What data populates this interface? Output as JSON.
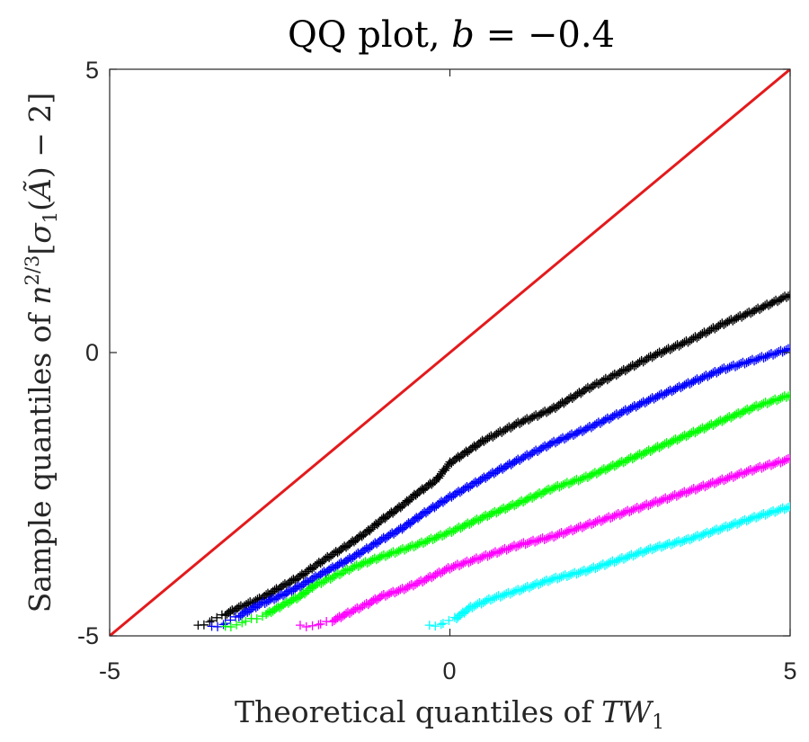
{
  "chart_data": {
    "type": "scatter",
    "title": "QQ plot, b = −0.4",
    "title_parts": {
      "prefix": "QQ plot, ",
      "var": "b",
      "suffix": " = −0.4"
    },
    "xlabel": "Theoretical quantiles of TW₁",
    "xlabel_parts": {
      "prefix": "Theoretical quantiles of ",
      "var": "TW",
      "sub": "1"
    },
    "ylabel": "Sample quantiles of n^{2/3}[σ₁(Ã) − 2]",
    "ylabel_parts": {
      "prefix": "Sample quantiles of ",
      "n": "n",
      "exp": "2/3",
      "open": "[",
      "sigma": "σ",
      "sub": "1",
      "paren_open": "(",
      "A": "Ã",
      "paren_close": ")",
      "tail": " − 2]"
    },
    "xlim": [
      -5,
      5
    ],
    "ylim": [
      -5,
      5
    ],
    "xticks": [
      -5,
      0,
      5
    ],
    "yticks": [
      -5,
      0,
      5
    ],
    "xtick_labels": [
      "-5",
      "0",
      "5"
    ],
    "ytick_labels": [
      "-5",
      "0",
      "5"
    ],
    "reference_line": {
      "x": [
        -5,
        5
      ],
      "y": [
        -5,
        5
      ],
      "color": "#e41a1c"
    },
    "marker": "+",
    "series": [
      {
        "name": "black",
        "color": "#000000",
        "x": [
          -3.7,
          -3.5,
          -3.3,
          -3.1,
          -2.8,
          -2.5,
          -2.2,
          -2.0,
          -1.8,
          -1.5,
          -1.2,
          -1.0,
          -0.7,
          -0.5,
          -0.2,
          0.0,
          0.5,
          1.0,
          1.5,
          2.0,
          2.5,
          3.0,
          3.5,
          4.0,
          4.5,
          5.0
        ],
        "y": [
          -4.83,
          -4.73,
          -4.62,
          -4.5,
          -4.35,
          -4.15,
          -3.95,
          -3.78,
          -3.62,
          -3.4,
          -3.15,
          -2.95,
          -2.7,
          -2.5,
          -2.25,
          -1.95,
          -1.55,
          -1.25,
          -1.0,
          -0.65,
          -0.35,
          -0.05,
          0.2,
          0.5,
          0.75,
          1.02
        ]
      },
      {
        "name": "blue",
        "color": "#0000ff",
        "x": [
          -3.5,
          -3.3,
          -3.1,
          -2.8,
          -2.5,
          -2.2,
          -2.0,
          -1.8,
          -1.5,
          -1.2,
          -1.0,
          -0.7,
          -0.4,
          -0.2,
          0.0,
          0.3,
          0.6,
          1.0,
          1.5,
          2.0,
          2.5,
          3.0,
          3.5,
          4.0,
          4.5,
          5.0
        ],
        "y": [
          -4.85,
          -4.78,
          -4.65,
          -4.45,
          -4.3,
          -4.12,
          -3.98,
          -3.85,
          -3.66,
          -3.45,
          -3.3,
          -3.1,
          -2.85,
          -2.7,
          -2.55,
          -2.35,
          -2.15,
          -1.9,
          -1.6,
          -1.35,
          -1.07,
          -0.8,
          -0.55,
          -0.3,
          -0.12,
          0.07
        ]
      },
      {
        "name": "green",
        "color": "#00ff00",
        "x": [
          -3.3,
          -3.0,
          -2.7,
          -2.4,
          -2.2,
          -2.0,
          -1.7,
          -1.4,
          -1.0,
          -0.5,
          0.0,
          0.5,
          1.0,
          1.5,
          2.0,
          2.5,
          3.0,
          3.5,
          4.0,
          4.5,
          5.0
        ],
        "y": [
          -4.85,
          -4.75,
          -4.62,
          -4.42,
          -4.3,
          -4.12,
          -3.95,
          -3.78,
          -3.6,
          -3.4,
          -3.17,
          -2.9,
          -2.66,
          -2.4,
          -2.2,
          -1.95,
          -1.7,
          -1.45,
          -1.2,
          -0.95,
          -0.75
        ]
      },
      {
        "name": "magenta",
        "color": "#ff00ff",
        "x": [
          -2.2,
          -1.9,
          -1.7,
          -1.5,
          -1.2,
          -1.0,
          -0.7,
          -0.4,
          0.0,
          0.5,
          1.0,
          1.5,
          2.0,
          2.5,
          3.0,
          3.5,
          4.0,
          4.5,
          5.0
        ],
        "y": [
          -4.83,
          -4.8,
          -4.72,
          -4.6,
          -4.43,
          -4.3,
          -4.18,
          -4.03,
          -3.8,
          -3.6,
          -3.4,
          -3.25,
          -3.05,
          -2.85,
          -2.65,
          -2.45,
          -2.25,
          -2.05,
          -1.88
        ]
      },
      {
        "name": "cyan",
        "color": "#00ffff",
        "x": [
          -0.3,
          -0.1,
          0.1,
          0.3,
          0.6,
          1.0,
          1.5,
          2.0,
          2.5,
          3.0,
          3.5,
          4.0,
          4.5,
          5.0
        ],
        "y": [
          -4.83,
          -4.78,
          -4.68,
          -4.5,
          -4.35,
          -4.2,
          -4.0,
          -3.85,
          -3.65,
          -3.45,
          -3.3,
          -3.1,
          -2.9,
          -2.72
        ]
      }
    ]
  }
}
